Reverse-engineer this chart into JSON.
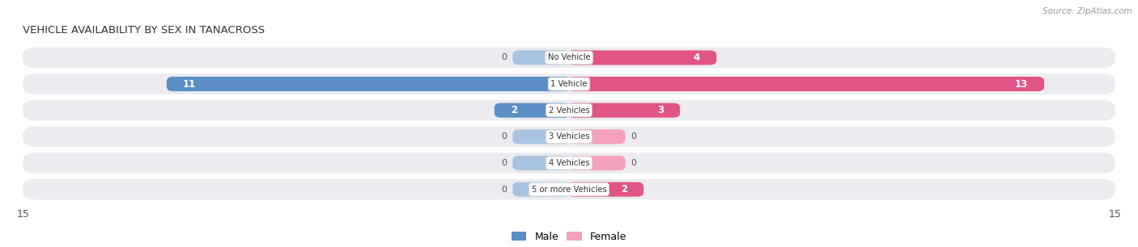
{
  "title": "VEHICLE AVAILABILITY BY SEX IN TANACROSS",
  "source": "Source: ZipAtlas.com",
  "categories": [
    "No Vehicle",
    "1 Vehicle",
    "2 Vehicles",
    "3 Vehicles",
    "4 Vehicles",
    "5 or more Vehicles"
  ],
  "male_values": [
    0,
    11,
    2,
    0,
    0,
    0
  ],
  "female_values": [
    4,
    13,
    3,
    0,
    0,
    2
  ],
  "male_color_full": "#5b8ec4",
  "male_color_light": "#a8c4e0",
  "female_color_full": "#e05585",
  "female_color_light": "#f4a0be",
  "row_bg_color": "#ebebf0",
  "row_bg_color2": "#f5f5f8",
  "x_max": 15,
  "stub_size": 1.5,
  "label_color_inside": "#ffffff",
  "label_color_outside": "#555555",
  "category_label_color": "#333333",
  "axis_label_color": "#555555",
  "title_color": "#333333",
  "source_color": "#999999",
  "figsize": [
    14.06,
    3.06
  ],
  "dpi": 100
}
